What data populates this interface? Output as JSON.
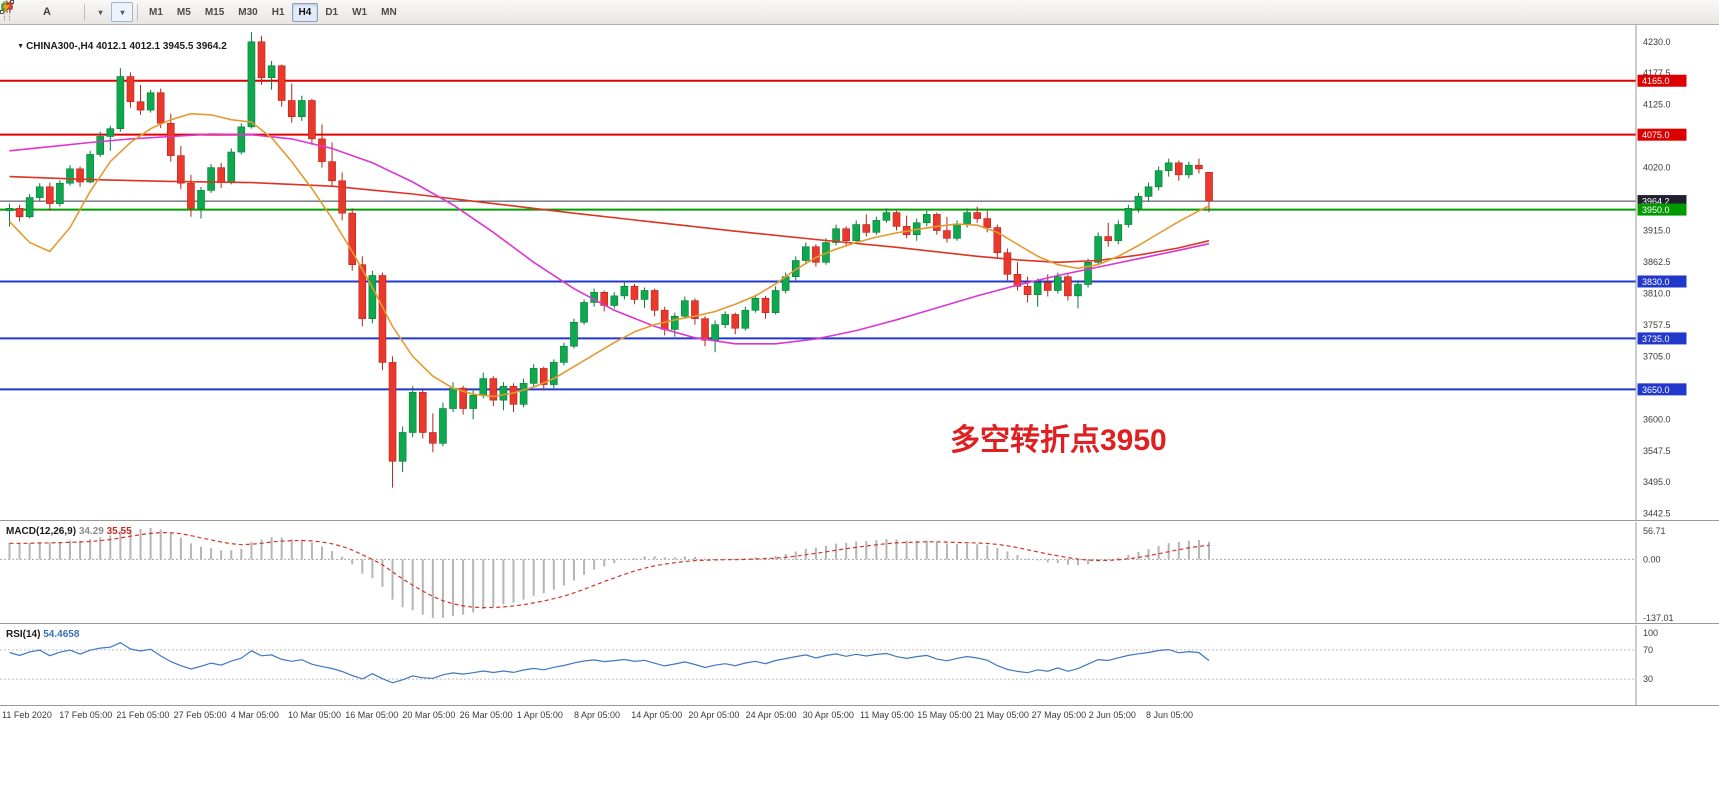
{
  "toolbar": {
    "text_tool_label": "A",
    "timeframes": [
      "M1",
      "M5",
      "M15",
      "M30",
      "H1",
      "H4",
      "D1",
      "W1",
      "MN"
    ],
    "active_timeframe": "H4"
  },
  "chart": {
    "symbol_title": "CHINA300-,H4",
    "ohlc_readout": "4012.1 4012.1 3945.5 3964.2",
    "annotation": {
      "text": "多空转折点3950",
      "color": "#e02020"
    },
    "price_axis": {
      "ticks": [
        4230.0,
        4177.5,
        4125.0,
        4020.0,
        3915.0,
        3862.5,
        3810.0,
        3757.5,
        3705.0,
        3600.0,
        3547.5,
        3495.0,
        3442.5
      ],
      "badges": [
        {
          "value": "4165.0",
          "price": 4165.0,
          "color": "#dd0000"
        },
        {
          "value": "4075.0",
          "price": 4075.0,
          "color": "#dd0000"
        },
        {
          "value": "3964.2",
          "price": 3964.2,
          "color": "#20202e"
        },
        {
          "value": "3950.0",
          "price": 3950.0,
          "color": "#009a00"
        },
        {
          "value": "3830.0",
          "price": 3830.0,
          "color": "#2238cc"
        },
        {
          "value": "3735.0",
          "price": 3735.0,
          "color": "#2238cc"
        },
        {
          "value": "3650.0",
          "price": 3650.0,
          "color": "#2238cc"
        }
      ]
    },
    "levels": [
      {
        "price": 4165.0,
        "color": "#e00000",
        "width": 2
      },
      {
        "price": 4075.0,
        "color": "#e00000",
        "width": 2
      },
      {
        "price": 3964.2,
        "color": "#3a3a58",
        "width": 1
      },
      {
        "price": 3950.0,
        "color": "#00a000",
        "width": 2
      },
      {
        "price": 3830.0,
        "color": "#2238cc",
        "width": 2
      },
      {
        "price": 3735.0,
        "color": "#2238cc",
        "width": 2
      },
      {
        "price": 3650.0,
        "color": "#2238cc",
        "width": 2
      }
    ],
    "time_axis": [
      "11 Feb 2020",
      "17 Feb 05:00",
      "21 Feb 05:00",
      "27 Feb 05:00",
      "4 Mar 05:00",
      "10 Mar 05:00",
      "16 Mar 05:00",
      "20 Mar 05:00",
      "26 Mar 05:00",
      "1 Apr 05:00",
      "8 Apr 05:00",
      "14 Apr 05:00",
      "20 Apr 05:00",
      "24 Apr 05:00",
      "30 Apr 05:00",
      "11 May 05:00",
      "15 May 05:00",
      "21 May 05:00",
      "27 May 05:00",
      "2 Jun 05:00",
      "8 Jun 05:00"
    ]
  },
  "macd": {
    "label": "MACD(12,26,9)",
    "value_main": "34.29",
    "value_signal": "35.55",
    "axis_max": "56.71",
    "axis_zero": "0.00",
    "axis_min": "-137.01"
  },
  "rsi": {
    "label": "RSI(14)",
    "value": "54.4658",
    "axis_labels": [
      "100",
      "70",
      "30"
    ],
    "levels": [
      70,
      30
    ]
  },
  "chart_data": {
    "type": "candlestick",
    "symbol": "CHINA300",
    "timeframe": "H4",
    "title": "CHINA300-,H4 4012.1 4012.1 3945.5 3964.2",
    "ylim": [
      3432,
      4258
    ],
    "indicators": {
      "macd_params": "12,26,9",
      "rsi_period": 14
    },
    "candles": [
      [
        3948,
        3960,
        3922,
        3952
      ],
      [
        3952,
        3958,
        3930,
        3938
      ],
      [
        3938,
        3976,
        3935,
        3970
      ],
      [
        3970,
        3994,
        3965,
        3988
      ],
      [
        3988,
        3995,
        3948,
        3960
      ],
      [
        3960,
        3999,
        3955,
        3994
      ],
      [
        3994,
        4024,
        3990,
        4018
      ],
      [
        4018,
        4022,
        3988,
        3996
      ],
      [
        3996,
        4048,
        3994,
        4042
      ],
      [
        4042,
        4080,
        4038,
        4072
      ],
      [
        4072,
        4090,
        4048,
        4085
      ],
      [
        4085,
        4186,
        4080,
        4172
      ],
      [
        4172,
        4179,
        4120,
        4130
      ],
      [
        4130,
        4158,
        4108,
        4116
      ],
      [
        4116,
        4150,
        4112,
        4145
      ],
      [
        4145,
        4152,
        4086,
        4094
      ],
      [
        4094,
        4110,
        4030,
        4040
      ],
      [
        4040,
        4056,
        3984,
        3994
      ],
      [
        3994,
        4008,
        3938,
        3952
      ],
      [
        3952,
        3988,
        3935,
        3982
      ],
      [
        3982,
        4026,
        3978,
        4020
      ],
      [
        4020,
        4028,
        3986,
        3996
      ],
      [
        3996,
        4052,
        3992,
        4046
      ],
      [
        4046,
        4094,
        4042,
        4088
      ],
      [
        4088,
        4246,
        4085,
        4230
      ],
      [
        4230,
        4240,
        4158,
        4170
      ],
      [
        4170,
        4198,
        4150,
        4190
      ],
      [
        4190,
        4192,
        4122,
        4132
      ],
      [
        4132,
        4160,
        4095,
        4105
      ],
      [
        4105,
        4140,
        4098,
        4132
      ],
      [
        4132,
        4135,
        4058,
        4068
      ],
      [
        4068,
        4092,
        4020,
        4030
      ],
      [
        4030,
        4062,
        3988,
        3998
      ],
      [
        3998,
        4012,
        3932,
        3944
      ],
      [
        3944,
        3952,
        3848,
        3858
      ],
      [
        3858,
        3872,
        3755,
        3768
      ],
      [
        3768,
        3848,
        3760,
        3840
      ],
      [
        3840,
        3845,
        3682,
        3695
      ],
      [
        3695,
        3705,
        3486,
        3530
      ],
      [
        3530,
        3588,
        3512,
        3578
      ],
      [
        3578,
        3655,
        3570,
        3645
      ],
      [
        3645,
        3650,
        3568,
        3578
      ],
      [
        3578,
        3610,
        3545,
        3560
      ],
      [
        3560,
        3628,
        3555,
        3618
      ],
      [
        3618,
        3662,
        3612,
        3652
      ],
      [
        3652,
        3656,
        3608,
        3618
      ],
      [
        3618,
        3648,
        3600,
        3640
      ],
      [
        3640,
        3678,
        3635,
        3668
      ],
      [
        3668,
        3672,
        3622,
        3632
      ],
      [
        3632,
        3662,
        3615,
        3655
      ],
      [
        3655,
        3660,
        3612,
        3625
      ],
      [
        3625,
        3668,
        3620,
        3660
      ],
      [
        3660,
        3692,
        3655,
        3685
      ],
      [
        3685,
        3688,
        3648,
        3658
      ],
      [
        3658,
        3700,
        3652,
        3695
      ],
      [
        3695,
        3728,
        3690,
        3722
      ],
      [
        3722,
        3768,
        3718,
        3762
      ],
      [
        3762,
        3800,
        3758,
        3795
      ],
      [
        3795,
        3818,
        3788,
        3812
      ],
      [
        3812,
        3815,
        3780,
        3790
      ],
      [
        3790,
        3812,
        3785,
        3806
      ],
      [
        3806,
        3828,
        3800,
        3822
      ],
      [
        3822,
        3826,
        3792,
        3800
      ],
      [
        3800,
        3820,
        3786,
        3815
      ],
      [
        3815,
        3818,
        3772,
        3782
      ],
      [
        3782,
        3788,
        3740,
        3750
      ],
      [
        3750,
        3778,
        3738,
        3772
      ],
      [
        3772,
        3805,
        3768,
        3798
      ],
      [
        3798,
        3802,
        3758,
        3768
      ],
      [
        3768,
        3772,
        3722,
        3732
      ],
      [
        3732,
        3765,
        3712,
        3758
      ],
      [
        3758,
        3780,
        3752,
        3775
      ],
      [
        3775,
        3778,
        3742,
        3752
      ],
      [
        3752,
        3788,
        3748,
        3782
      ],
      [
        3782,
        3808,
        3778,
        3802
      ],
      [
        3802,
        3806,
        3768,
        3778
      ],
      [
        3778,
        3822,
        3775,
        3815
      ],
      [
        3815,
        3845,
        3810,
        3838
      ],
      [
        3838,
        3872,
        3832,
        3865
      ],
      [
        3865,
        3895,
        3860,
        3888
      ],
      [
        3888,
        3892,
        3855,
        3862
      ],
      [
        3862,
        3902,
        3858,
        3895
      ],
      [
        3895,
        3925,
        3890,
        3918
      ],
      [
        3918,
        3922,
        3888,
        3898
      ],
      [
        3898,
        3932,
        3895,
        3925
      ],
      [
        3925,
        3942,
        3905,
        3912
      ],
      [
        3912,
        3938,
        3908,
        3932
      ],
      [
        3932,
        3952,
        3928,
        3945
      ],
      [
        3945,
        3948,
        3915,
        3922
      ],
      [
        3922,
        3940,
        3902,
        3908
      ],
      [
        3908,
        3935,
        3898,
        3928
      ],
      [
        3928,
        3948,
        3922,
        3942
      ],
      [
        3942,
        3945,
        3908,
        3915
      ],
      [
        3915,
        3938,
        3895,
        3902
      ],
      [
        3902,
        3932,
        3898,
        3926
      ],
      [
        3926,
        3952,
        3920,
        3945
      ],
      [
        3945,
        3955,
        3928,
        3935
      ],
      [
        3935,
        3948,
        3912,
        3920
      ],
      [
        3920,
        3925,
        3868,
        3878
      ],
      [
        3878,
        3885,
        3832,
        3842
      ],
      [
        3842,
        3862,
        3815,
        3822
      ],
      [
        3822,
        3838,
        3795,
        3808
      ],
      [
        3808,
        3835,
        3788,
        3828
      ],
      [
        3828,
        3842,
        3805,
        3815
      ],
      [
        3815,
        3845,
        3810,
        3838
      ],
      [
        3838,
        3842,
        3798,
        3806
      ],
      [
        3806,
        3832,
        3785,
        3825
      ],
      [
        3825,
        3868,
        3820,
        3862
      ],
      [
        3862,
        3912,
        3858,
        3905
      ],
      [
        3905,
        3928,
        3888,
        3898
      ],
      [
        3898,
        3932,
        3892,
        3925
      ],
      [
        3925,
        3958,
        3920,
        3952
      ],
      [
        3952,
        3978,
        3945,
        3972
      ],
      [
        3972,
        3995,
        3965,
        3988
      ],
      [
        3988,
        4022,
        3982,
        4015
      ],
      [
        4015,
        4035,
        4005,
        4028
      ],
      [
        4028,
        4032,
        3998,
        4008
      ],
      [
        4008,
        4030,
        4002,
        4024
      ],
      [
        4024,
        4035,
        4010,
        4018
      ],
      [
        4012.1,
        4012.1,
        3945.5,
        3964.2
      ]
    ],
    "ma_orange_points": [
      [
        0,
        3930
      ],
      [
        2,
        3895
      ],
      [
        4,
        3880
      ],
      [
        6,
        3920
      ],
      [
        8,
        3980
      ],
      [
        10,
        4030
      ],
      [
        12,
        4062
      ],
      [
        14,
        4085
      ],
      [
        16,
        4100
      ],
      [
        18,
        4110
      ],
      [
        20,
        4108
      ],
      [
        22,
        4100
      ],
      [
        24,
        4096
      ],
      [
        26,
        4070
      ],
      [
        28,
        4030
      ],
      [
        30,
        3985
      ],
      [
        32,
        3935
      ],
      [
        34,
        3880
      ],
      [
        36,
        3820
      ],
      [
        38,
        3755
      ],
      [
        40,
        3705
      ],
      [
        42,
        3672
      ],
      [
        44,
        3652
      ],
      [
        46,
        3642
      ],
      [
        48,
        3638
      ],
      [
        50,
        3644
      ],
      [
        52,
        3654
      ],
      [
        54,
        3668
      ],
      [
        56,
        3688
      ],
      [
        58,
        3708
      ],
      [
        60,
        3728
      ],
      [
        62,
        3746
      ],
      [
        64,
        3758
      ],
      [
        66,
        3766
      ],
      [
        68,
        3772
      ],
      [
        70,
        3780
      ],
      [
        72,
        3792
      ],
      [
        74,
        3806
      ],
      [
        76,
        3826
      ],
      [
        78,
        3850
      ],
      [
        80,
        3870
      ],
      [
        82,
        3884
      ],
      [
        84,
        3895
      ],
      [
        86,
        3904
      ],
      [
        88,
        3911
      ],
      [
        90,
        3917
      ],
      [
        92,
        3922
      ],
      [
        94,
        3926
      ],
      [
        96,
        3924
      ],
      [
        98,
        3912
      ],
      [
        100,
        3892
      ],
      [
        102,
        3872
      ],
      [
        104,
        3858
      ],
      [
        106,
        3852
      ],
      [
        108,
        3858
      ],
      [
        110,
        3872
      ],
      [
        112,
        3890
      ],
      [
        114,
        3910
      ],
      [
        116,
        3930
      ],
      [
        118,
        3948
      ],
      [
        119,
        3956
      ]
    ],
    "ma_magenta_points": [
      [
        0,
        4048
      ],
      [
        4,
        4055
      ],
      [
        8,
        4062
      ],
      [
        12,
        4068
      ],
      [
        16,
        4072
      ],
      [
        20,
        4076
      ],
      [
        24,
        4075
      ],
      [
        28,
        4068
      ],
      [
        32,
        4052
      ],
      [
        36,
        4028
      ],
      [
        40,
        3996
      ],
      [
        44,
        3958
      ],
      [
        48,
        3912
      ],
      [
        52,
        3862
      ],
      [
        56,
        3818
      ],
      [
        60,
        3782
      ],
      [
        64,
        3755
      ],
      [
        68,
        3736
      ],
      [
        72,
        3726
      ],
      [
        76,
        3726
      ],
      [
        80,
        3734
      ],
      [
        84,
        3748
      ],
      [
        88,
        3766
      ],
      [
        92,
        3786
      ],
      [
        96,
        3806
      ],
      [
        100,
        3824
      ],
      [
        104,
        3840
      ],
      [
        108,
        3854
      ],
      [
        112,
        3868
      ],
      [
        116,
        3882
      ],
      [
        119,
        3893
      ]
    ],
    "ma_red_points": [
      [
        0,
        4005
      ],
      [
        8,
        4000
      ],
      [
        16,
        3997
      ],
      [
        24,
        3995
      ],
      [
        32,
        3989
      ],
      [
        40,
        3976
      ],
      [
        48,
        3960
      ],
      [
        56,
        3944
      ],
      [
        64,
        3929
      ],
      [
        72,
        3914
      ],
      [
        80,
        3900
      ],
      [
        88,
        3887
      ],
      [
        96,
        3872
      ],
      [
        100,
        3866
      ],
      [
        104,
        3862
      ],
      [
        108,
        3865
      ],
      [
        112,
        3874
      ],
      [
        116,
        3886
      ],
      [
        119,
        3898
      ]
    ]
  }
}
